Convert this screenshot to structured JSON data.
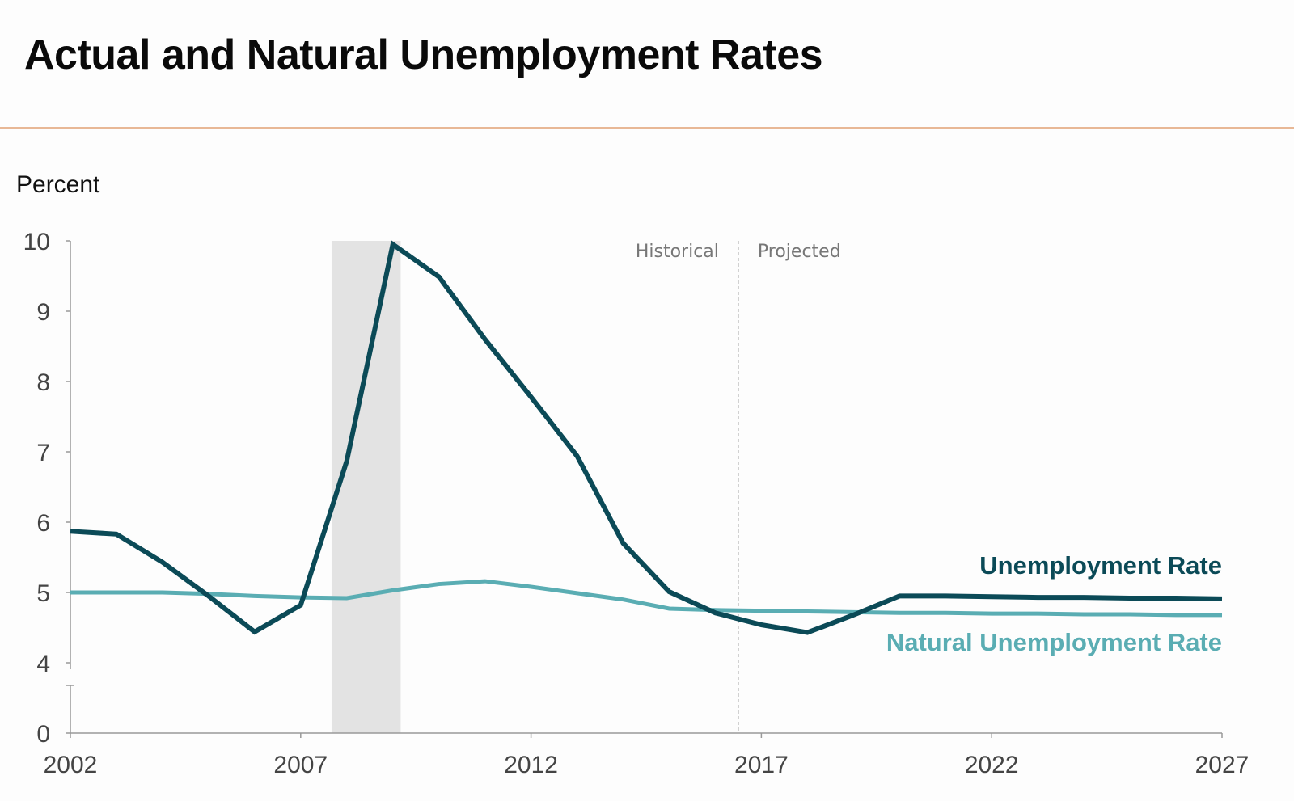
{
  "chart_data": {
    "type": "line",
    "title": "Actual and Natural Unemployment Rates",
    "ylabel": "Percent",
    "xlabel": "",
    "x_ticks": [
      "2002",
      "2007",
      "2012",
      "2017",
      "2022",
      "2027"
    ],
    "y_ticks": [
      "0",
      "4",
      "5",
      "6",
      "7",
      "8",
      "9",
      "10"
    ],
    "xlim": [
      2002,
      2027
    ],
    "ylim": [
      4,
      10
    ],
    "y_axis_break": "between 0 and 4",
    "grid": false,
    "legend": "direct labels at right end of lines",
    "x": [
      2002,
      2003,
      2004,
      2005,
      2006,
      2007,
      2008,
      2009,
      2010,
      2011,
      2012,
      2013,
      2014,
      2015,
      2016,
      2017,
      2018,
      2019,
      2020,
      2021,
      2022,
      2023,
      2024,
      2025,
      2026,
      2027
    ],
    "series": [
      {
        "name": "Unemployment Rate",
        "color": "#0b4a57",
        "values": [
          5.87,
          5.83,
          5.43,
          4.95,
          4.44,
          4.82,
          6.87,
          9.95,
          9.49,
          8.6,
          7.78,
          6.94,
          5.7,
          5.01,
          4.71,
          4.54,
          4.43,
          4.68,
          4.95,
          4.95,
          4.94,
          4.93,
          4.93,
          4.92,
          4.92,
          4.91
        ]
      },
      {
        "name": "Natural Unemployment Rate",
        "color": "#5aadb3",
        "values": [
          5.0,
          5.0,
          5.0,
          4.98,
          4.95,
          4.93,
          4.92,
          5.03,
          5.12,
          5.16,
          5.08,
          4.99,
          4.9,
          4.77,
          4.75,
          4.74,
          4.73,
          4.72,
          4.71,
          4.71,
          4.7,
          4.7,
          4.69,
          4.69,
          4.68,
          4.68
        ]
      }
    ],
    "shaded_period": {
      "start": 2007.67,
      "end": 2009.17,
      "color": "#e3e3e3"
    },
    "divider": {
      "x": 2016.5,
      "left_label": "Historical",
      "right_label": "Projected"
    }
  }
}
